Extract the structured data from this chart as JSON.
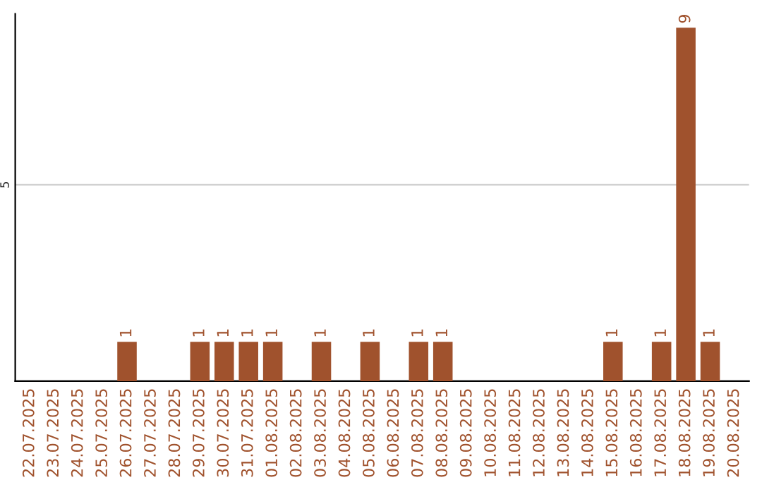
{
  "chart_data": {
    "type": "bar",
    "categories": [
      "22.07.2025",
      "23.07.2025",
      "24.07.2025",
      "25.07.2025",
      "26.07.2025",
      "27.07.2025",
      "28.07.2025",
      "29.07.2025",
      "30.07.2025",
      "31.07.2025",
      "01.08.2025",
      "02.08.2025",
      "03.08.2025",
      "04.08.2025",
      "05.08.2025",
      "06.08.2025",
      "07.08.2025",
      "08.08.2025",
      "09.08.2025",
      "10.08.2025",
      "11.08.2025",
      "12.08.2025",
      "13.08.2025",
      "14.08.2025",
      "15.08.2025",
      "16.08.2025",
      "17.08.2025",
      "18.08.2025",
      "19.08.2025",
      "20.08.2025"
    ],
    "values": [
      0,
      0,
      0,
      0,
      1,
      0,
      0,
      1,
      1,
      1,
      1,
      0,
      1,
      0,
      1,
      0,
      1,
      1,
      0,
      0,
      0,
      0,
      0,
      0,
      1,
      0,
      1,
      9,
      1,
      0
    ],
    "value_labels": [
      null,
      null,
      null,
      null,
      "1",
      null,
      null,
      "1",
      "1",
      "1",
      "1",
      null,
      "1",
      null,
      "1",
      null,
      "1",
      "1",
      null,
      null,
      null,
      null,
      null,
      null,
      "1",
      null,
      "1",
      "9",
      "1",
      null
    ],
    "color": "#a0522d",
    "ylim": [
      0,
      9.35
    ],
    "yticks": [
      5
    ],
    "grid": "y"
  }
}
